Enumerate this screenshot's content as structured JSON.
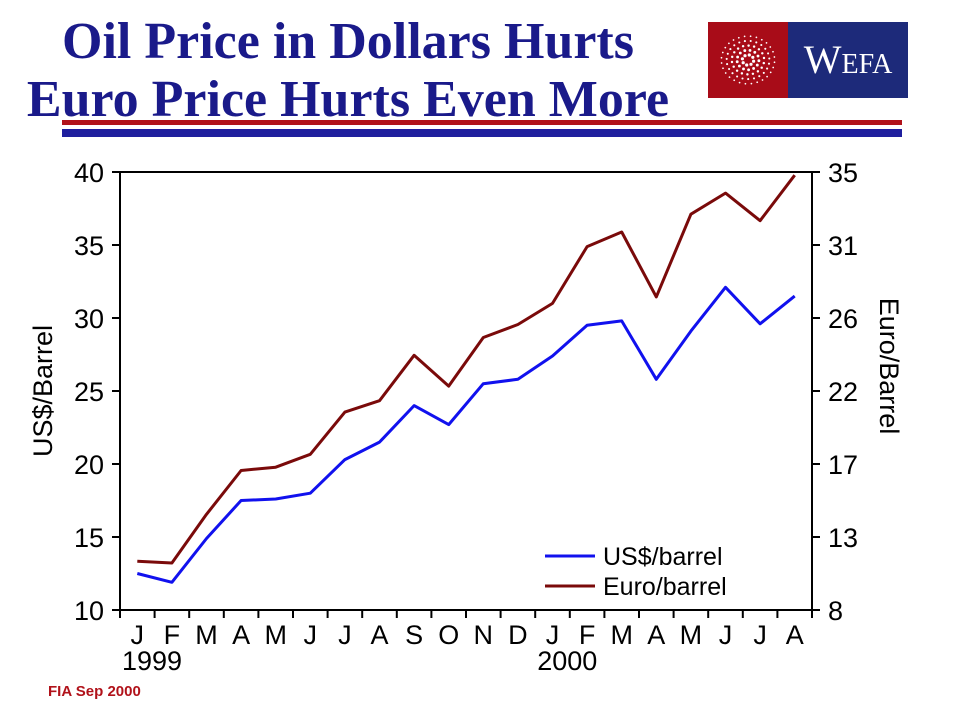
{
  "header": {
    "title_line1": "Oil Price in Dollars Hurts",
    "title_line2": "Euro Price Hurts Even More",
    "title_color": "#1a1a8a",
    "rule_colors": [
      "#b1121a",
      "#1f1f9e"
    ]
  },
  "logo": {
    "text": "WEFA",
    "left_color": "#a80c18",
    "right_color": "#1d2a7a"
  },
  "footer": {
    "text": "FIA Sep 2000"
  },
  "chart_data": {
    "type": "line",
    "categories": [
      "J",
      "F",
      "M",
      "A",
      "M",
      "J",
      "J",
      "A",
      "S",
      "O",
      "N",
      "D",
      "J",
      "F",
      "M",
      "A",
      "M",
      "J",
      "J",
      "A"
    ],
    "year_labels": [
      {
        "label": "1999",
        "category_index": 0
      },
      {
        "label": "2000",
        "category_index": 12
      }
    ],
    "ylabel": "US$/Barrel",
    "y2label": "Euro/Barrel",
    "ylim": [
      10,
      40
    ],
    "yticks": [
      10,
      15,
      20,
      25,
      30,
      35,
      40
    ],
    "y2ticks": [
      8,
      13,
      17,
      22,
      26,
      31,
      35
    ],
    "y2lim": [
      8,
      35
    ],
    "grid": false,
    "legend_position": "bottom-right",
    "series": [
      {
        "name": "US$/barrel",
        "axis": "left",
        "color": "#1111ee",
        "values": [
          12.5,
          11.9,
          14.9,
          17.5,
          17.6,
          18.0,
          20.3,
          21.5,
          24.0,
          22.7,
          25.5,
          25.8,
          27.4,
          29.5,
          29.8,
          25.8,
          29.1,
          32.1,
          29.6,
          31.5
        ]
      },
      {
        "name": "Euro/barrel",
        "axis": "right",
        "color": "#7a0a0a",
        "values": [
          11.0,
          10.9,
          13.9,
          16.6,
          16.8,
          17.6,
          20.2,
          20.9,
          23.7,
          21.8,
          24.8,
          25.6,
          26.9,
          30.4,
          31.3,
          27.3,
          32.4,
          33.7,
          32.0,
          34.8
        ]
      }
    ]
  }
}
